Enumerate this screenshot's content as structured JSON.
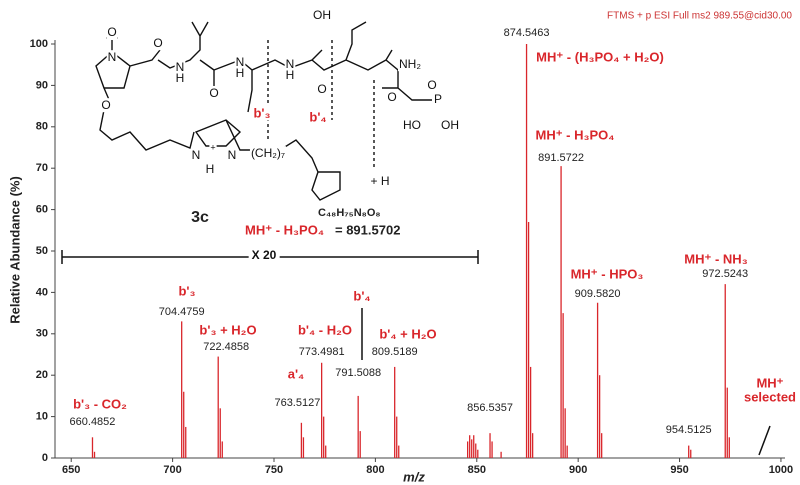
{
  "chart_data": {
    "type": "spectrum",
    "title": "FTMS + p ESI Full ms2 989.55@cid30.00",
    "x_label": "m/z",
    "y_label": "Relative Abundance (%)",
    "color": "#d9262b",
    "x": [
      660.4852,
      704.4759,
      722.4858,
      763.5127,
      773.4981,
      791.5088,
      809.5189,
      856.5357,
      874.5463,
      891.5722,
      909.582,
      954.5125,
      972.5243
    ],
    "x_labels": [
      "660.4852",
      "704.4759",
      "722.4858",
      "763.5127",
      "773.4981",
      "791.5088",
      "809.5189",
      "856.5357",
      "874.5463",
      "891.5722",
      "909.5820",
      "954.5125",
      "972.5243"
    ],
    "values": [
      5,
      33,
      24.5,
      8.5,
      23,
      15,
      22,
      6,
      100,
      70.5,
      37.5,
      3,
      42
    ],
    "minor_peaks": {
      "x": [
        661.49,
        705.48,
        706.48,
        723.49,
        724.49,
        764.52,
        774.5,
        775.5,
        792.51,
        810.52,
        811.52,
        845.5,
        846.5,
        847.5,
        848.5,
        849.5,
        850.5,
        857.54,
        862.0,
        875.55,
        876.55,
        877.55,
        892.58,
        893.58,
        894.58,
        910.59,
        911.59,
        955.52,
        973.53,
        974.53
      ],
      "values": [
        1.5,
        16,
        7.5,
        12,
        4,
        5,
        10,
        3,
        6.5,
        10,
        3,
        4,
        5.5,
        4.5,
        5.5,
        3.5,
        2,
        4,
        1.5,
        57,
        22,
        6,
        35,
        12,
        3,
        20,
        6,
        2,
        17,
        5
      ]
    },
    "annotations": [
      "b'₃ - CO₂",
      "b'₃",
      "b'₃ + H₂O",
      "a'₄",
      "b'₄ - H₂O",
      "b'₄",
      "b'₄ + H₂O",
      "MH⁺ - (H₃PO₄ + H₂O)",
      "MH⁺ - H₃PO₄",
      "MH⁺ - HPO₃",
      "MH⁺ - NH₃",
      "MH⁺",
      "selected",
      "X 20"
    ],
    "xlim": [
      642,
      1002
    ],
    "ylim": [
      0,
      100
    ],
    "xticks": [
      650,
      700,
      750,
      800,
      850,
      900,
      950,
      1000
    ],
    "yticks": [
      0,
      10,
      20,
      30,
      40,
      50,
      60,
      70,
      80,
      90,
      100
    ]
  },
  "structure": {
    "name": "3c",
    "formula": "C₄₈H₇₅N₈O₈",
    "mass_label": "MH⁺ - H₃PO₄",
    "mass_value": "= 891.5702",
    "atoms": [
      "O",
      "N",
      "O",
      "N",
      "H",
      "N",
      "H",
      "O",
      "OH",
      "N",
      "H",
      "O",
      "NH₂",
      "O",
      "O",
      "P",
      "O",
      "OH",
      "HO",
      "N",
      "+",
      "N",
      "H",
      "(CH₂)₇",
      "b'₃",
      "b'₄",
      "+ H"
    ]
  }
}
